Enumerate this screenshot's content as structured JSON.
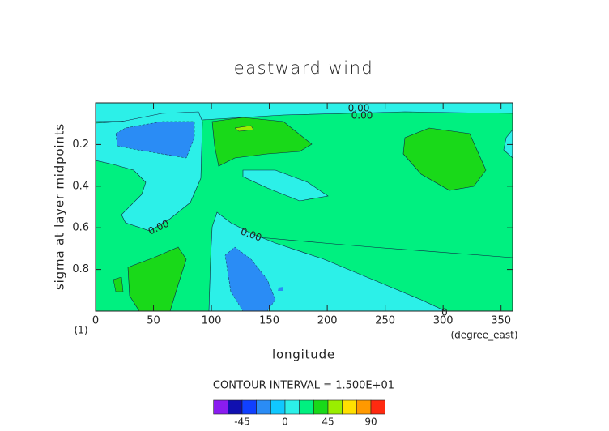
{
  "chart_data": {
    "type": "contour",
    "title": "eastward wind",
    "xlabel": "longitude",
    "ylabel": "sigma at layer midpoints",
    "x_units": "(degree_east)",
    "corner_label": "(1)",
    "xlim": [
      0,
      360
    ],
    "xticks": [
      0,
      50,
      100,
      150,
      200,
      250,
      300,
      350
    ],
    "ylim": [
      1,
      0
    ],
    "yticks": [
      0.2,
      0.4,
      0.6,
      0.8
    ],
    "contour_labels": [
      "0.00",
      "0.00",
      "0.00",
      "0.00",
      "0"
    ],
    "contour_interval_text": "CONTOUR INTERVAL = 1.500E+01",
    "colorbar": {
      "levels": [
        -75,
        -60,
        -45,
        -30,
        -15,
        0,
        15,
        30,
        45,
        60,
        75,
        90,
        105
      ],
      "colors": [
        "#8a1cf0",
        "#1010b0",
        "#1040ff",
        "#2a8cf5",
        "#10c8ff",
        "#2cf0e8",
        "#00f080",
        "#19d919",
        "#9aee00",
        "#ffe000",
        "#ff9900",
        "#ff2a10"
      ],
      "ticks": [
        -45,
        0,
        45,
        90
      ]
    }
  }
}
